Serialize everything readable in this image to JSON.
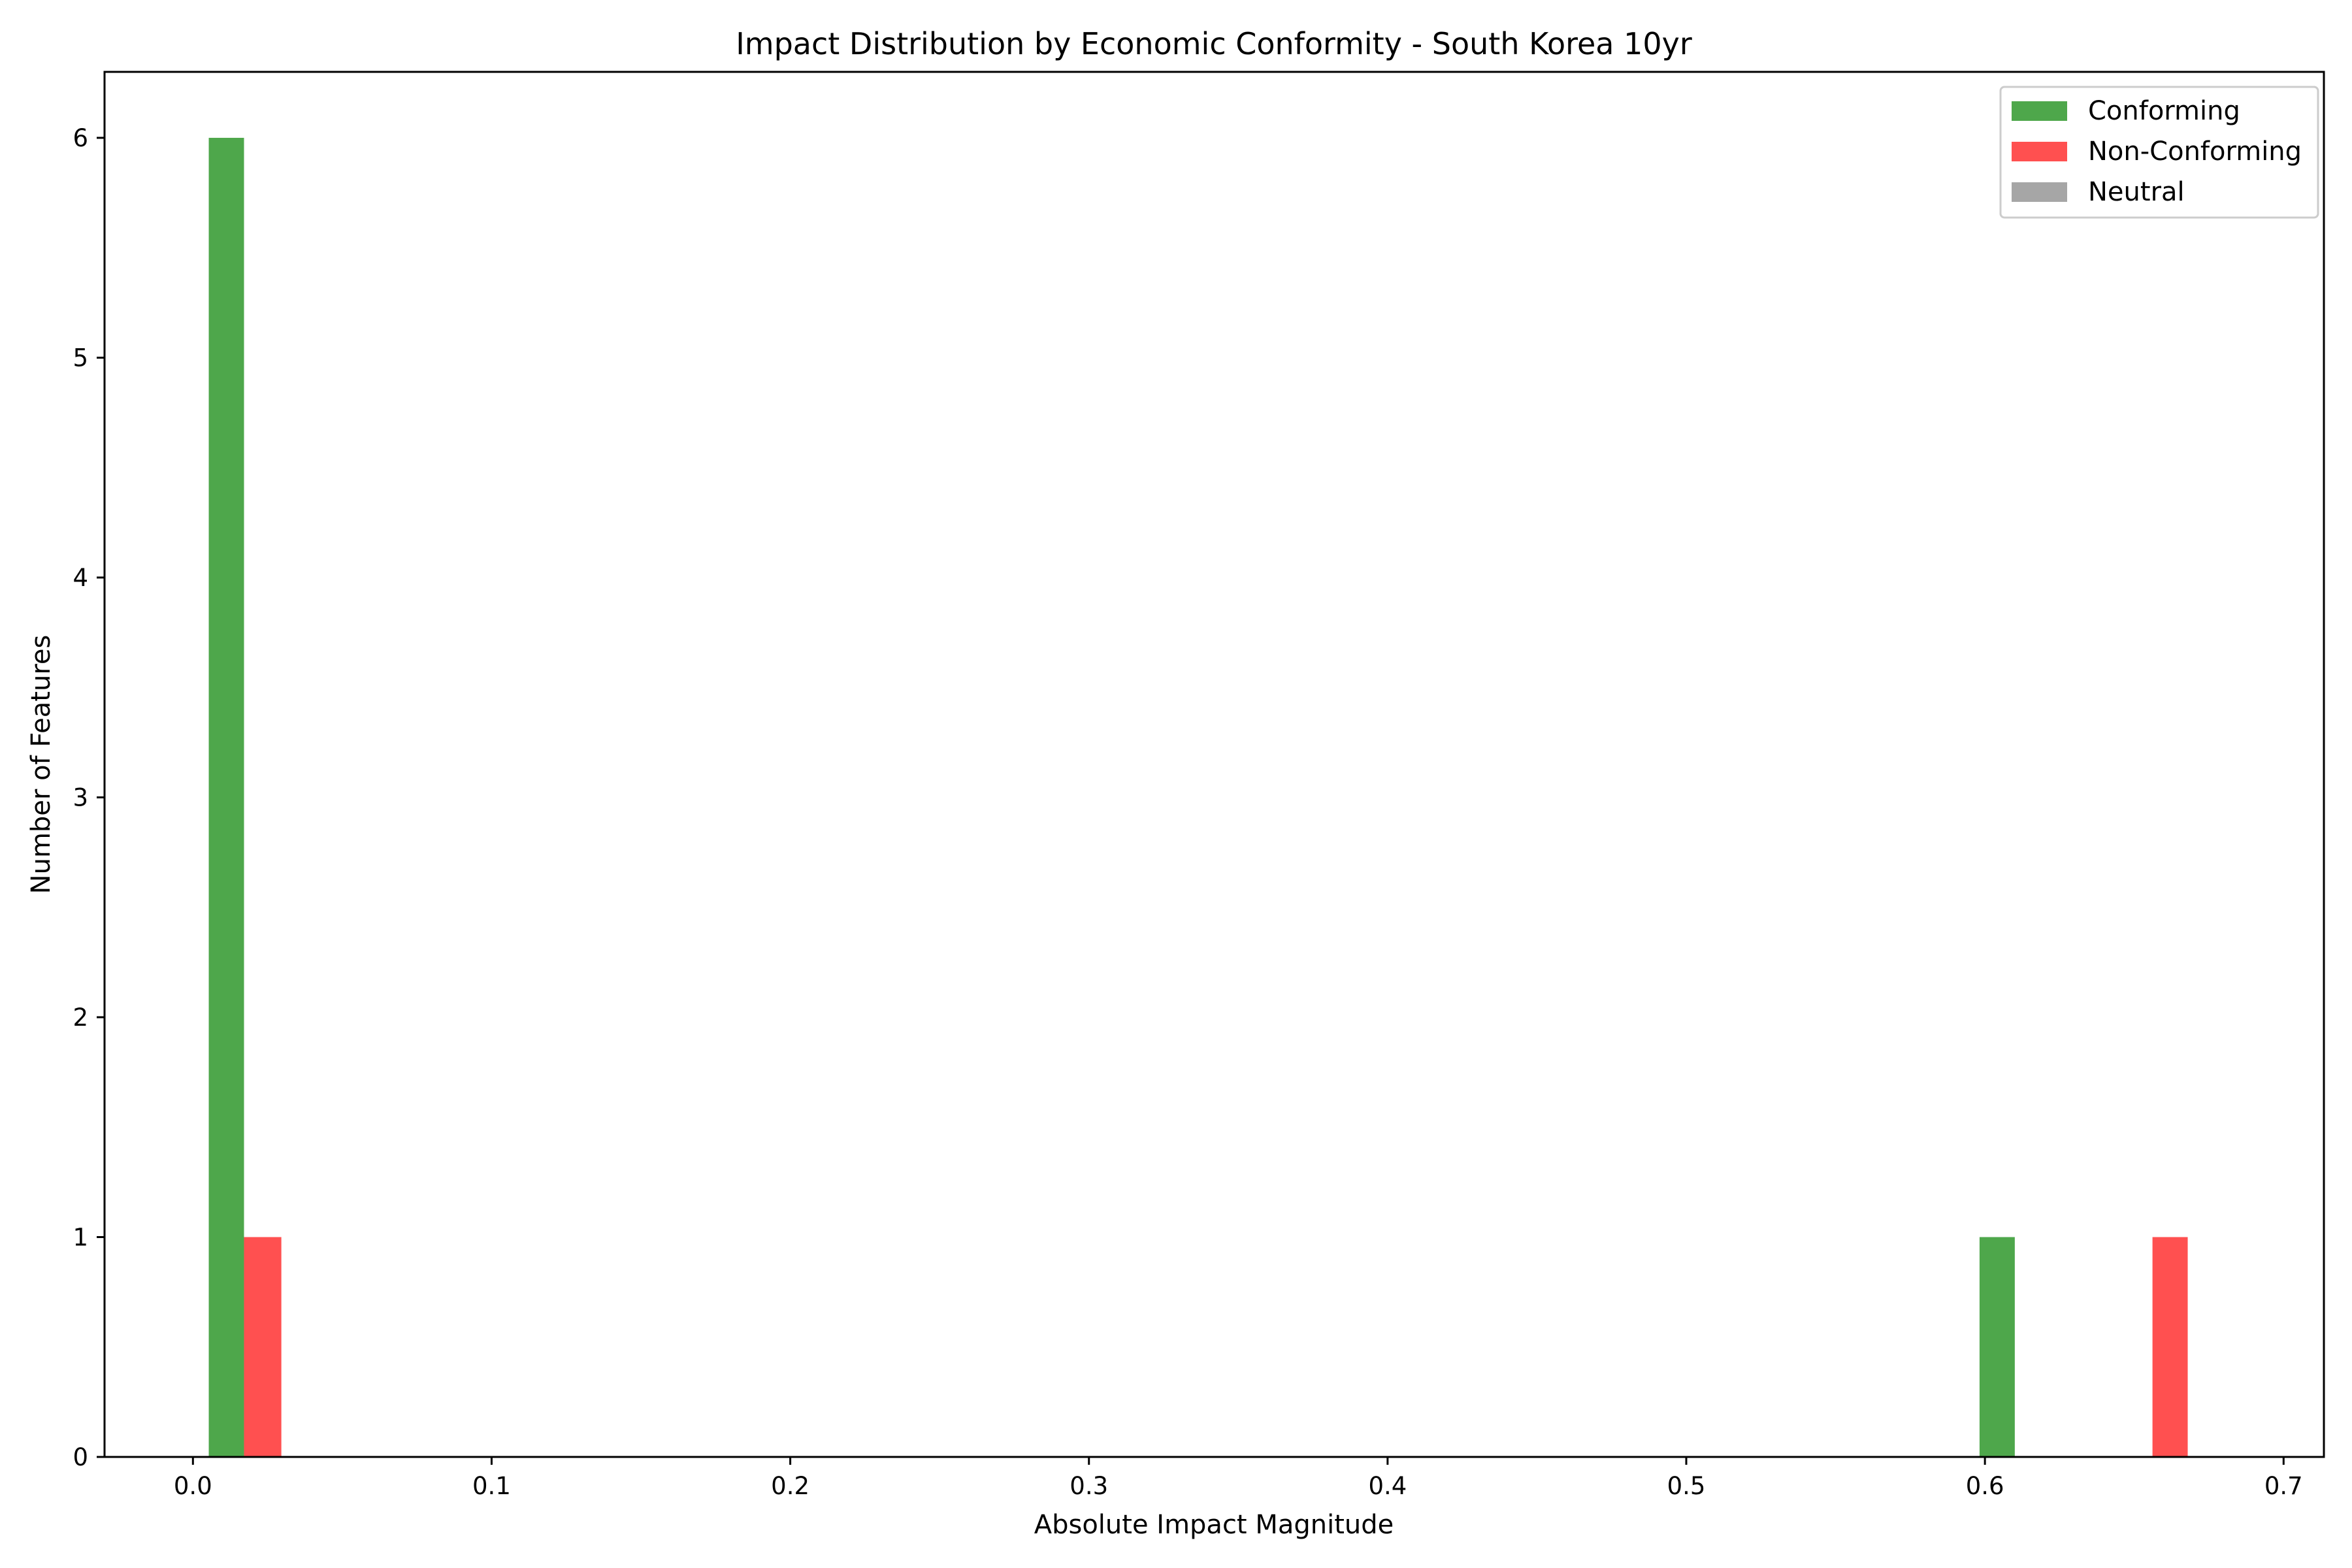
{
  "chart_data": {
    "type": "bar",
    "title": "Impact Distribution by Economic Conformity - South Korea 10yr",
    "xlabel": "Absolute Impact Magnitude",
    "ylabel": "Number of Features",
    "xlim": [
      -0.0296,
      0.7135
    ],
    "ylim": [
      0,
      6.3
    ],
    "x_ticks": [
      "0.0",
      "0.1",
      "0.2",
      "0.3",
      "0.4",
      "0.5",
      "0.6",
      "0.7"
    ],
    "x_tick_values": [
      0.0,
      0.1,
      0.2,
      0.3,
      0.4,
      0.5,
      0.6,
      0.7
    ],
    "y_ticks": [
      "0",
      "1",
      "2",
      "3",
      "4",
      "5",
      "6"
    ],
    "y_tick_values": [
      0,
      1,
      2,
      3,
      4,
      5,
      6
    ],
    "grid": false,
    "legend_position": "top-right",
    "series": [
      {
        "name": "Conforming",
        "color": "#4ea74b",
        "bars": [
          {
            "x_start": 0.0053,
            "x_end": 0.0171,
            "value": 6
          },
          {
            "x_start": 0.5982,
            "x_end": 0.61,
            "value": 1
          }
        ]
      },
      {
        "name": "Non-Conforming",
        "color": "#ff5050",
        "bars": [
          {
            "x_start": 0.0171,
            "x_end": 0.0296,
            "value": 1
          },
          {
            "x_start": 0.6561,
            "x_end": 0.6679,
            "value": 1
          }
        ]
      },
      {
        "name": "Neutral",
        "color": "#a6a6a6",
        "bars": []
      }
    ]
  }
}
